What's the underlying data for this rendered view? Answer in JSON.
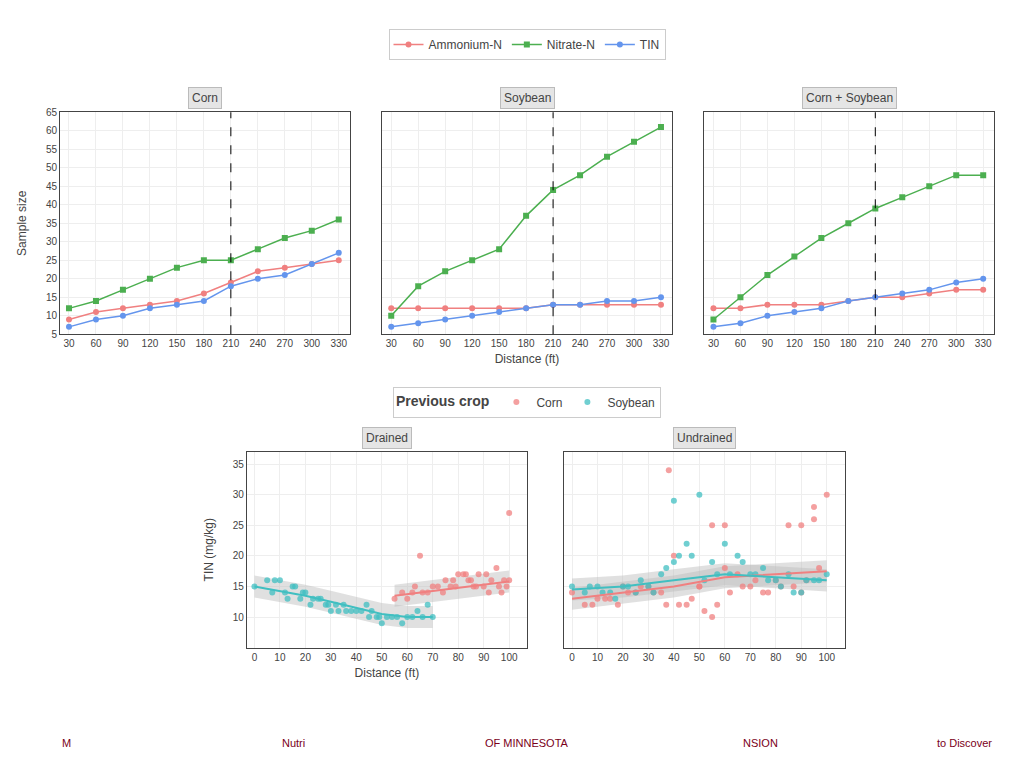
{
  "chart_data": [
    {
      "type": "line",
      "title": "Corn",
      "ylabel": "Sample size",
      "x": [
        30,
        60,
        90,
        120,
        150,
        180,
        210,
        240,
        270,
        300,
        330
      ],
      "xlim": [
        20,
        342
      ],
      "xticks": [
        30,
        60,
        90,
        120,
        150,
        180,
        210,
        240,
        270,
        300,
        330
      ],
      "ylim": [
        5,
        65
      ],
      "yticks": [
        5,
        10,
        15,
        20,
        25,
        30,
        35,
        40,
        45,
        50,
        55,
        60,
        65
      ],
      "grid": true,
      "vline": 210,
      "series": [
        {
          "name": "Ammonium-N",
          "color": "#F08080",
          "marker": "circle",
          "values": [
            9,
            11,
            12,
            13,
            14,
            16,
            19,
            22,
            23,
            24,
            25
          ]
        },
        {
          "name": "Nitrate-N",
          "color": "#4CAF50",
          "marker": "square",
          "values": [
            12,
            14,
            17,
            20,
            23,
            25,
            25,
            28,
            31,
            33,
            36
          ]
        },
        {
          "name": "TIN",
          "color": "#6495ED",
          "marker": "circle",
          "values": [
            7,
            9,
            10,
            12,
            13,
            14,
            18,
            20,
            21,
            24,
            27
          ]
        }
      ]
    },
    {
      "type": "line",
      "title": "Soybean",
      "xlabel": "Distance (ft)",
      "x": [
        30,
        60,
        90,
        120,
        150,
        180,
        210,
        240,
        270,
        300,
        330
      ],
      "xlim": [
        20,
        342
      ],
      "xticks": [
        30,
        60,
        90,
        120,
        150,
        180,
        210,
        240,
        270,
        300,
        330
      ],
      "ylim": [
        5,
        65
      ],
      "yticks": [
        5,
        10,
        15,
        20,
        25,
        30,
        35,
        40,
        45,
        50,
        55,
        60,
        65
      ],
      "grid": true,
      "vline": 210,
      "tick_labels": "x",
      "series": [
        {
          "name": "Ammonium-N",
          "color": "#F08080",
          "marker": "circle",
          "values": [
            12,
            12,
            12,
            12,
            12,
            12,
            13,
            13,
            13,
            13,
            13
          ]
        },
        {
          "name": "Nitrate-N",
          "color": "#4CAF50",
          "marker": "square",
          "values": [
            10,
            18,
            22,
            25,
            28,
            37,
            44,
            48,
            53,
            57,
            61
          ]
        },
        {
          "name": "TIN",
          "color": "#6495ED",
          "marker": "circle",
          "values": [
            7,
            8,
            9,
            10,
            11,
            12,
            13,
            13,
            14,
            14,
            15
          ]
        }
      ]
    },
    {
      "type": "line",
      "title": "Corn + Soybean",
      "x": [
        30,
        60,
        90,
        120,
        150,
        180,
        210,
        240,
        270,
        300,
        330
      ],
      "xlim": [
        20,
        342
      ],
      "xticks": [
        30,
        60,
        90,
        120,
        150,
        180,
        210,
        240,
        270,
        300,
        330
      ],
      "ylim": [
        5,
        65
      ],
      "yticks": [
        5,
        10,
        15,
        20,
        25,
        30,
        35,
        40,
        45,
        50,
        55,
        60,
        65
      ],
      "grid": true,
      "vline": 210,
      "tick_labels": "x",
      "series": [
        {
          "name": "Ammonium-N",
          "color": "#F08080",
          "marker": "circle",
          "values": [
            12,
            12,
            13,
            13,
            13,
            14,
            15,
            15,
            16,
            17,
            17
          ]
        },
        {
          "name": "Nitrate-N",
          "color": "#4CAF50",
          "marker": "square",
          "values": [
            9,
            15,
            21,
            26,
            31,
            35,
            39,
            42,
            45,
            48,
            48
          ]
        },
        {
          "name": "TIN",
          "color": "#6495ED",
          "marker": "circle",
          "values": [
            7,
            8,
            10,
            11,
            12,
            14,
            15,
            16,
            17,
            19,
            20
          ]
        }
      ]
    },
    {
      "type": "scatter",
      "title": "Drained",
      "xlabel": "Distance (ft)",
      "ylabel": "TIN (mg/kg)",
      "legend_title": "Previous crop",
      "xlim": [
        -3,
        107
      ],
      "xticks": [
        0,
        10,
        20,
        30,
        40,
        50,
        60,
        70,
        80,
        90,
        100
      ],
      "ylim": [
        5,
        37
      ],
      "yticks": [
        10,
        15,
        20,
        25,
        30,
        35
      ],
      "grid": true,
      "series": [
        {
          "name": "Corn",
          "color": "#F08080",
          "x": [
            55,
            58,
            60,
            63,
            65,
            68,
            70,
            72,
            75,
            77,
            78,
            80,
            82,
            84,
            85,
            87,
            88,
            90,
            91,
            93,
            95,
            97,
            98,
            100,
            100,
            62,
            66,
            74,
            79,
            83,
            86,
            92,
            96,
            99
          ],
          "values": [
            13,
            14,
            13,
            15,
            20,
            14,
            15,
            15,
            16,
            15,
            16,
            17,
            17,
            16,
            16,
            15,
            17,
            15,
            17,
            16,
            18,
            14,
            16,
            27,
            16,
            14,
            14,
            14,
            15,
            17,
            15,
            14,
            15,
            15
          ],
          "trend": {
            "x": [
              55,
              65,
              75,
              85,
              95,
              100
            ],
            "values": [
              13.5,
              14.0,
              14.5,
              15.0,
              15.5,
              15.8
            ],
            "lower": [
              11.7,
              12.2,
              12.7,
              13.2,
              13.7,
              14.0
            ],
            "upper": [
              15.3,
              15.8,
              16.3,
              16.8,
              17.3,
              17.6
            ],
            "color": "#BBBBBB"
          }
        },
        {
          "name": "Soybean",
          "color": "#40BFC1",
          "x": [
            0,
            5,
            7,
            8,
            10,
            12,
            13,
            15,
            16,
            18,
            19,
            20,
            22,
            23,
            25,
            26,
            28,
            29,
            30,
            32,
            33,
            35,
            36,
            38,
            40,
            42,
            44,
            45,
            46,
            48,
            49,
            50,
            52,
            54,
            56,
            58,
            60,
            62,
            64,
            66,
            68,
            70
          ],
          "values": [
            15,
            16,
            14,
            16,
            16,
            14,
            13,
            15,
            15,
            13,
            14,
            14,
            12,
            13,
            13,
            13,
            12,
            12,
            11,
            12,
            11,
            12,
            11,
            11,
            11,
            11,
            12,
            10,
            11,
            10,
            10,
            9,
            10,
            10,
            10,
            9,
            10,
            10,
            11,
            10,
            12,
            10
          ],
          "trend": {
            "x": [
              0,
              10,
              20,
              30,
              40,
              50,
              60,
              70
            ],
            "values": [
              15.0,
              14.2,
              13.5,
              12.5,
              11.5,
              10.5,
              10.0,
              10.0
            ],
            "lower": [
              13.2,
              12.4,
              11.7,
              10.7,
              9.7,
              8.7,
              8.2,
              8.2
            ],
            "upper": [
              16.8,
              16.0,
              15.3,
              14.3,
              13.3,
              12.3,
              11.8,
              11.8
            ],
            "color": "#BBBBBB"
          }
        }
      ]
    },
    {
      "type": "scatter",
      "title": "Undrained",
      "tick_labels": "x",
      "xlim": [
        -3,
        107
      ],
      "xticks": [
        0,
        10,
        20,
        30,
        40,
        50,
        60,
        70,
        80,
        90,
        100
      ],
      "ylim": [
        5,
        37
      ],
      "yticks": [
        10,
        15,
        20,
        25,
        30,
        35
      ],
      "grid": true,
      "series": [
        {
          "name": "Corn",
          "color": "#F08080",
          "x": [
            0,
            5,
            8,
            10,
            13,
            15,
            18,
            20,
            22,
            25,
            27,
            30,
            32,
            35,
            37,
            40,
            42,
            45,
            47,
            50,
            52,
            55,
            57,
            60,
            62,
            65,
            67,
            70,
            72,
            75,
            77,
            80,
            82,
            85,
            87,
            90,
            92,
            95,
            97,
            100,
            38,
            50,
            55,
            60,
            90,
            95
          ],
          "values": [
            14,
            12,
            12,
            13,
            13,
            13,
            12,
            15,
            14,
            14,
            15,
            15,
            14,
            14,
            12,
            20,
            12,
            12,
            13,
            15,
            11,
            10,
            12,
            18,
            14,
            17,
            15,
            15,
            16,
            14,
            14,
            16,
            15,
            25,
            15,
            14,
            16,
            28,
            18,
            30,
            34,
            15,
            25,
            25,
            25,
            26
          ],
          "trend": {
            "x": [
              0,
              20,
              40,
              60,
              80,
              100
            ],
            "values": [
              13.0,
              14.0,
              15.0,
              16.5,
              17.0,
              17.5
            ],
            "lower": [
              11.2,
              12.2,
              13.2,
              14.7,
              15.2,
              15.7
            ],
            "upper": [
              14.8,
              15.8,
              16.8,
              18.3,
              18.8,
              19.3
            ],
            "color": "#BBBBBB"
          }
        },
        {
          "name": "Soybean",
          "color": "#40BFC1",
          "x": [
            0,
            5,
            7,
            10,
            12,
            15,
            17,
            20,
            22,
            25,
            27,
            30,
            32,
            35,
            37,
            40,
            42,
            45,
            47,
            50,
            52,
            55,
            57,
            60,
            62,
            65,
            67,
            70,
            72,
            75,
            77,
            80,
            82,
            85,
            87,
            90,
            92,
            95,
            97,
            100,
            40
          ],
          "values": [
            15,
            14,
            15,
            15,
            14,
            14,
            13,
            15,
            15,
            14,
            16,
            15,
            14,
            17,
            18,
            19,
            20,
            22,
            20,
            30,
            16,
            19,
            17,
            22,
            17,
            20,
            19,
            17,
            17,
            18,
            16,
            16,
            15,
            17,
            14,
            14,
            16,
            16,
            16,
            17,
            29
          ],
          "trend": {
            "x": [
              0,
              20,
              40,
              60,
              80,
              100
            ],
            "values": [
              14.5,
              15.0,
              16.0,
              17.0,
              16.5,
              16.0
            ],
            "lower": [
              12.7,
              13.2,
              14.2,
              15.2,
              14.7,
              14.2
            ],
            "upper": [
              16.3,
              16.8,
              17.8,
              18.8,
              18.3,
              17.8
            ],
            "color": "#BBBBBB"
          }
        }
      ]
    }
  ],
  "annotations": [
    "M",
    "Nutri",
    "OF MINNESOTA",
    "NSION",
    "to Discover"
  ]
}
